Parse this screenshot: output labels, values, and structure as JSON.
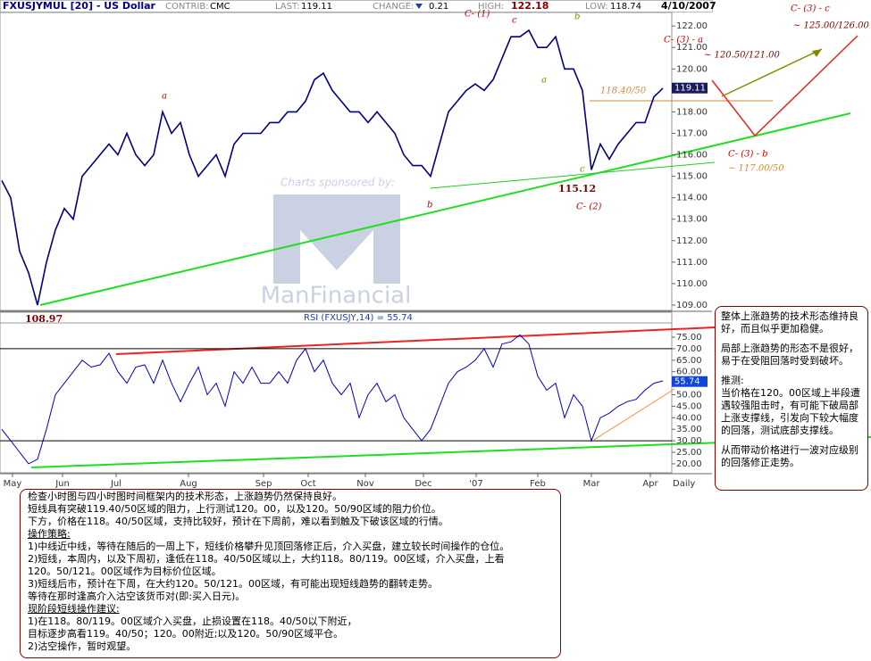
{
  "header": {
    "symbol": "FXUSJYMUL [20] - US Dollar",
    "fields": [
      {
        "label": "CONTRIB:",
        "value": "CMC"
      },
      {
        "label": "LAST:",
        "value": 119.11
      },
      {
        "label": "CHANGE:",
        "value": 0.21
      },
      {
        "label": "HIGH:",
        "value": 122.18
      },
      {
        "label": "LOW:",
        "value": 118.74
      }
    ],
    "date": "4/10/2007"
  },
  "chart_data": [
    {
      "type": "line",
      "color": "#000080",
      "x": [
        0,
        1,
        2,
        3,
        4,
        5,
        6,
        7,
        8,
        9,
        10,
        11,
        12,
        13,
        14,
        15,
        16,
        17,
        18,
        19,
        20,
        21,
        22,
        23,
        24,
        25,
        26,
        27,
        28,
        29,
        30,
        31,
        32,
        33,
        34,
        35,
        36,
        37,
        38,
        39,
        40,
        41,
        42,
        43,
        44,
        45,
        46,
        47,
        48,
        49,
        50,
        51,
        52,
        53,
        54,
        55,
        56,
        57,
        58,
        59,
        60,
        61,
        62,
        63,
        64,
        65,
        66,
        67,
        68,
        69,
        70,
        71,
        72,
        73,
        74
      ],
      "values": [
        114.8,
        114,
        111.5,
        110.5,
        109.0,
        111,
        112.5,
        113.5,
        113,
        115,
        115.5,
        116,
        116.5,
        116,
        117,
        116,
        115.5,
        116,
        118,
        117,
        117.5,
        116,
        115,
        115.5,
        116,
        115,
        116.5,
        117,
        117,
        117,
        117.5,
        117.5,
        118,
        118,
        118.5,
        119.5,
        119.8,
        119,
        118.5,
        118,
        118,
        117.5,
        118,
        117.5,
        117,
        116,
        115.5,
        115.5,
        115,
        116.5,
        118,
        118.5,
        119,
        119.3,
        119,
        119.5,
        120.5,
        121.5,
        121.5,
        121.8,
        121,
        121,
        121.5,
        120,
        120,
        119,
        115.3,
        116.5,
        115.8,
        116.5,
        117,
        117.5,
        117.5,
        118.7,
        119.1
      ],
      "xlim": [
        0,
        75
      ],
      "ylim": [
        108.75,
        122.63
      ],
      "yticks": [
        {
          "value": 122,
          "label": "122.00"
        },
        {
          "value": 121,
          "label": "121.00"
        },
        {
          "value": 120,
          "label": "120.00"
        },
        {
          "value": 118,
          "label": "118.00"
        },
        {
          "value": 117,
          "label": "117.00"
        },
        {
          "value": 116,
          "label": "116.00"
        },
        {
          "value": 115,
          "label": "115.00"
        },
        {
          "value": 114,
          "label": "114.00"
        },
        {
          "value": 113,
          "label": "113.00"
        },
        {
          "value": 112,
          "label": "112.00"
        },
        {
          "value": 111,
          "label": "111.00"
        },
        {
          "value": 110,
          "label": "110.00"
        },
        {
          "value": 109,
          "label": "109.00"
        }
      ],
      "last_value": 119.11,
      "annotations": [
        "C- (1)",
        "c",
        "b",
        "a",
        "a",
        "b",
        "c",
        "115.12",
        "C- (2)",
        "108.97",
        "118.40/50",
        "C- (3) - a",
        "~ 120.50/121.00",
        "C- (3) - c",
        "~ 125.00/126.00",
        "C- (3) - b",
        "~ 117.00/50"
      ],
      "sponsor": "Charts sponsored by:",
      "sponsor_name": "ManFinancial"
    },
    {
      "type": "line",
      "title": "RSI (FXUSJY,14) = 55.74",
      "color": "#0000cc",
      "x": [
        0,
        1,
        2,
        3,
        4,
        5,
        6,
        7,
        8,
        9,
        10,
        11,
        12,
        13,
        14,
        15,
        16,
        17,
        18,
        19,
        20,
        21,
        22,
        23,
        24,
        25,
        26,
        27,
        28,
        29,
        30,
        31,
        32,
        33,
        34,
        35,
        36,
        37,
        38,
        39,
        40,
        41,
        42,
        43,
        44,
        45,
        46,
        47,
        48,
        49,
        50,
        51,
        52,
        53,
        54,
        55,
        56,
        57,
        58,
        59,
        60,
        61,
        62,
        63,
        64,
        65,
        66,
        67,
        68,
        69,
        70,
        71,
        72,
        73,
        74
      ],
      "values": [
        35,
        30,
        25,
        20,
        22,
        35,
        50,
        55,
        60,
        65,
        62,
        63,
        68,
        60,
        55,
        62,
        63,
        55,
        65,
        55,
        47,
        55,
        62,
        50,
        55,
        45,
        60,
        55,
        62,
        55,
        55,
        60,
        55,
        65,
        70,
        60,
        65,
        55,
        50,
        55,
        40,
        50,
        55,
        47,
        50,
        40,
        35,
        30,
        35,
        45,
        55,
        60,
        62,
        65,
        70,
        62,
        72,
        73,
        76,
        72,
        58,
        52,
        55,
        40,
        50,
        45,
        30,
        40,
        42,
        45,
        47,
        48,
        52,
        55,
        56
      ],
      "xlim": [
        0,
        75
      ],
      "ylim": [
        16.1,
        81.2
      ],
      "yticks": [
        {
          "value": 75,
          "label": "75.00"
        },
        {
          "value": 70,
          "label": "70.00"
        },
        {
          "value": 65,
          "label": "65.00"
        },
        {
          "value": 60,
          "label": "60.00"
        },
        {
          "value": 50,
          "label": "50.00"
        },
        {
          "value": 45,
          "label": "45.00"
        },
        {
          "value": 40,
          "label": "40.00"
        },
        {
          "value": 35,
          "label": "35.00"
        },
        {
          "value": 30,
          "label": "30.00"
        },
        {
          "value": 25,
          "label": "25.00"
        },
        {
          "value": 20,
          "label": "20.00"
        }
      ],
      "ref_lines": [
        70,
        30
      ],
      "last_value": 55.74,
      "xticks": [
        {
          "value": 1.2,
          "label": "May"
        },
        {
          "value": 6.8,
          "label": "Jun"
        },
        {
          "value": 12.8,
          "label": "Jul"
        },
        {
          "value": 20.9,
          "label": "Aug"
        },
        {
          "value": 29.3,
          "label": "Sep"
        },
        {
          "value": 34.3,
          "label": "Oct"
        },
        {
          "value": 40.7,
          "label": "Nov"
        },
        {
          "value": 47.2,
          "label": "Dec"
        },
        {
          "value": 53.1,
          "label": "'07"
        },
        {
          "value": 60,
          "label": "Feb"
        },
        {
          "value": 66,
          "label": "Mar"
        },
        {
          "value": 72.6,
          "label": "Apr"
        }
      ],
      "period": "Daily"
    }
  ],
  "side_note": [
    "整体上涨趋势的技术形态维持良好，而且似乎更加稳健。",
    "局部上涨趋势的形态不是很好，易于在受阻回落时受到破坏。",
    "推测:",
    "当价格在120。00区域上半段遭遇较强阻击时，有可能下破局部上涨支撑线，引发向下较大幅度的回落，测试底部支撑线。",
    "从而带动价格进行一波对应级别的回落修正走势。"
  ],
  "commentary": [
    "检查小时图与四小时图时间框架内的技术形态，上涨趋势仍然保持良好。",
    "短线具有突破119.40/50区域的阻力，上行测试120。00，以及120。50/90区域的阻力价位。",
    "下方，价格在118。40/50区域，支持比较好，预计在下周前，难以看到触及下破该区域的行情。",
    "操作策略:",
    "1)中线近中线，等待在随后的一周上下，短线价格攀升见顶回落修正后，介入买盘，建立较长时间操作的仓位。",
    "2)短线，本周内，以及下周初，逢低在118。40/50区域以上，大约118。80/119。00区域，介入买盘，上看",
    "120。50/121。00区域作为目标价位区域。",
    "3)短线后市，预计在下周，在大约120。50/121。00区域，有可能出现短线趋势的翻转走势。",
    "等待在那时逢高介入沽空该货币对(即:买入日元)。",
    "现阶段短线操作建议:",
    "1)在118。80/119。00区域介入买盘，止损设置在118。40/50以下附近，",
    "目标逐步高看119。40/50；120。00附近;以及120。50/90区域平仓。",
    "2)沽空操作，暂时观望。"
  ]
}
